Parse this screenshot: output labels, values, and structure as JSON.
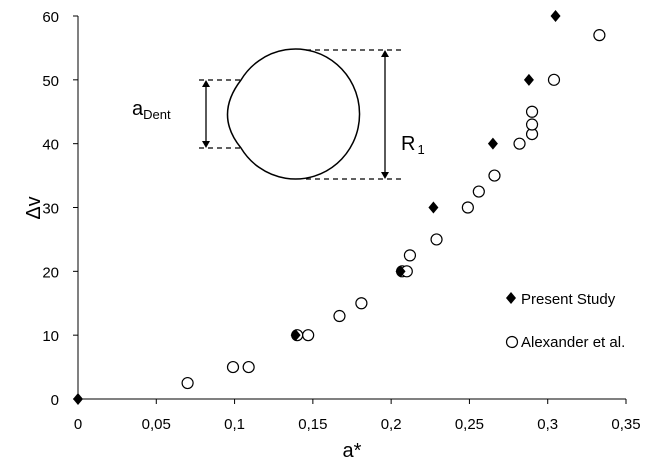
{
  "chart_data": {
    "type": "scatter",
    "xlabel": "a*",
    "ylabel": "Δv",
    "xlim": [
      0,
      0.35
    ],
    "ylim": [
      0,
      60
    ],
    "x_ticks": [
      "0",
      "0,05",
      "0,1",
      "0,15",
      "0,2",
      "0,25",
      "0,3",
      "0,35"
    ],
    "y_ticks": [
      "0",
      "10",
      "20",
      "30",
      "40",
      "50",
      "60"
    ],
    "x_tick_values": [
      0,
      0.05,
      0.1,
      0.15,
      0.2,
      0.25,
      0.3,
      0.35
    ],
    "y_tick_values": [
      0,
      10,
      20,
      30,
      40,
      50,
      60
    ],
    "grid": false,
    "legend_position": "bottom-right",
    "series": [
      {
        "name": "Present Study",
        "marker": "diamond",
        "color": "#000000",
        "points": [
          {
            "x": 0.0,
            "y": 0
          },
          {
            "x": 0.139,
            "y": 10
          },
          {
            "x": 0.206,
            "y": 20
          },
          {
            "x": 0.227,
            "y": 30
          },
          {
            "x": 0.265,
            "y": 40
          },
          {
            "x": 0.288,
            "y": 50
          },
          {
            "x": 0.305,
            "y": 60
          }
        ]
      },
      {
        "name": "Alexander et al.",
        "marker": "circle-open",
        "color": "#000000",
        "points": [
          {
            "x": 0.07,
            "y": 2.5
          },
          {
            "x": 0.099,
            "y": 5
          },
          {
            "x": 0.109,
            "y": 5
          },
          {
            "x": 0.14,
            "y": 10
          },
          {
            "x": 0.147,
            "y": 10
          },
          {
            "x": 0.167,
            "y": 13
          },
          {
            "x": 0.181,
            "y": 15
          },
          {
            "x": 0.207,
            "y": 20
          },
          {
            "x": 0.21,
            "y": 20
          },
          {
            "x": 0.212,
            "y": 22.5
          },
          {
            "x": 0.229,
            "y": 25
          },
          {
            "x": 0.249,
            "y": 30
          },
          {
            "x": 0.256,
            "y": 32.5
          },
          {
            "x": 0.266,
            "y": 35
          },
          {
            "x": 0.282,
            "y": 40
          },
          {
            "x": 0.29,
            "y": 41.5
          },
          {
            "x": 0.29,
            "y": 43
          },
          {
            "x": 0.29,
            "y": 45
          },
          {
            "x": 0.304,
            "y": 50
          },
          {
            "x": 0.333,
            "y": 57
          }
        ]
      }
    ],
    "inset": {
      "label_left_main": "a",
      "label_left_sub": "Dent",
      "label_right_main": "R",
      "label_right_sub": "1"
    }
  }
}
